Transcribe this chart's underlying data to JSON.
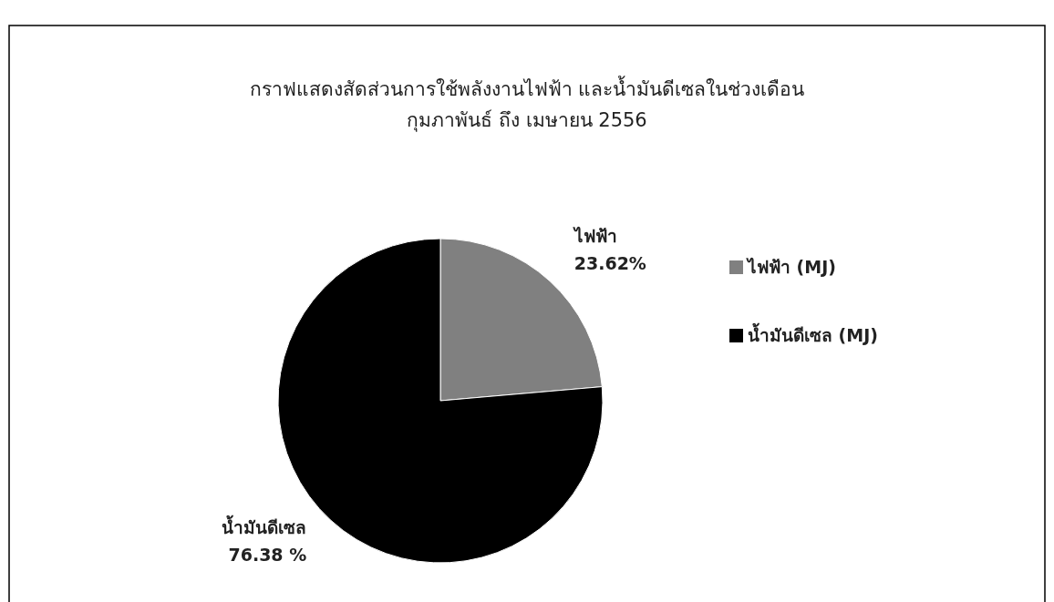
{
  "chart_data": {
    "type": "pie",
    "title": "กราฟแสดงสัดส่วนการใช้พลังงานไฟฟ้า และน้ำมันดีเซลในช่วงเดือน\nกุมภาพันธ์ ถึง เมษายน 2556",
    "categories": [
      "ไฟฟ้า (MJ)",
      "น้ำมันดีเซล (MJ)"
    ],
    "values": [
      23.62,
      76.38
    ],
    "colors": [
      "#808080",
      "#000000"
    ],
    "value_labels": [
      "ไฟฟ้า\n23.62%",
      "น้ำมันดีเซล\n76.38 %"
    ],
    "legend": "right"
  }
}
